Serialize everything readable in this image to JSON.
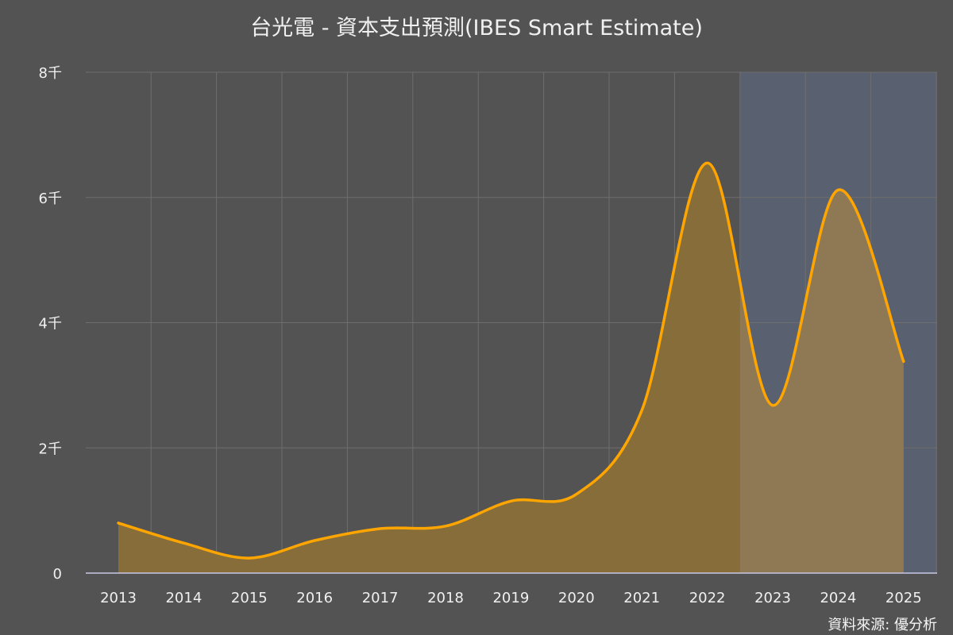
{
  "chart_data": {
    "type": "area",
    "title": "台光電 - 資本支出預測(IBES Smart Estimate)",
    "x": [
      "2013",
      "2014",
      "2015",
      "2016",
      "2017",
      "2018",
      "2019",
      "2020",
      "2021",
      "2022",
      "2023",
      "2024",
      "2025"
    ],
    "values": [
      800,
      480,
      240,
      520,
      710,
      750,
      1150,
      1260,
      2600,
      6550,
      2680,
      6120,
      3380
    ],
    "y_ticks": [
      0,
      2000,
      4000,
      6000,
      8000
    ],
    "y_tick_labels": [
      "0",
      "2千",
      "4千",
      "6千",
      "8千"
    ],
    "ylim": [
      0,
      8000
    ],
    "estimate_from": "2023",
    "grid": true,
    "legend": "none",
    "colors": {
      "line": "#ffa500",
      "fill_actual": "#866d3a",
      "fill_estimate": "#8f7955",
      "estimate_band": "#59606f",
      "grid": "#6e6e6e",
      "baseline": "#c8c8e6"
    }
  },
  "source": "資料來源: 優分析"
}
